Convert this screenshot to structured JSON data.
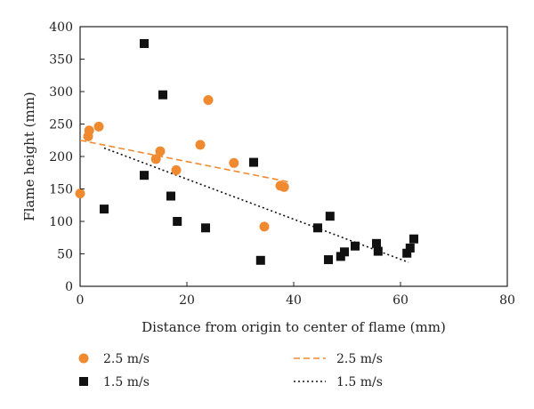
{
  "chart_data": {
    "type": "scatter",
    "title": "",
    "xlabel": "Distance from origin to center of flame (mm)",
    "ylabel": "Flame height (mm)",
    "xlim": [
      0,
      80
    ],
    "ylim": [
      0,
      400
    ],
    "xticks": [
      0,
      20,
      40,
      60,
      80
    ],
    "yticks": [
      0,
      50,
      100,
      150,
      200,
      250,
      300,
      350,
      400
    ],
    "grid": false,
    "legend_position": "bottom",
    "series": [
      {
        "name": "2.5 m/s",
        "kind": "points",
        "marker": "circle",
        "color": "#f08a30",
        "points": [
          [
            0,
            143
          ],
          [
            1.5,
            231
          ],
          [
            1.7,
            240
          ],
          [
            3.5,
            246
          ],
          [
            14.2,
            196
          ],
          [
            15,
            208
          ],
          [
            18,
            179
          ],
          [
            22.5,
            218
          ],
          [
            24,
            287
          ],
          [
            28.8,
            190
          ],
          [
            34.5,
            92
          ],
          [
            37.5,
            155
          ],
          [
            38.2,
            153
          ]
        ]
      },
      {
        "name": "1.5 m/s",
        "kind": "points",
        "marker": "square",
        "color": "#111111",
        "points": [
          [
            4.5,
            119
          ],
          [
            12,
            374
          ],
          [
            12,
            171
          ],
          [
            15.5,
            295
          ],
          [
            17,
            139
          ],
          [
            18.2,
            100
          ],
          [
            23.5,
            90
          ],
          [
            32.5,
            191
          ],
          [
            33.8,
            40
          ],
          [
            44.5,
            90
          ],
          [
            46.5,
            41
          ],
          [
            46.8,
            108
          ],
          [
            48.8,
            46
          ],
          [
            49.5,
            53
          ],
          [
            51.5,
            62
          ],
          [
            55.5,
            66
          ],
          [
            55.8,
            54
          ],
          [
            61.2,
            51
          ],
          [
            61.8,
            59
          ],
          [
            62.5,
            73
          ]
        ]
      },
      {
        "name": "2.5 m/s",
        "kind": "trendline",
        "style": "dashed",
        "color": "#f08a30",
        "x": [
          0,
          39
        ],
        "y": [
          225,
          161
        ]
      },
      {
        "name": "1.5 m/s",
        "kind": "trendline",
        "style": "dotted",
        "color": "#111111",
        "x": [
          4.5,
          61.5
        ],
        "y": [
          213,
          37
        ]
      }
    ]
  }
}
